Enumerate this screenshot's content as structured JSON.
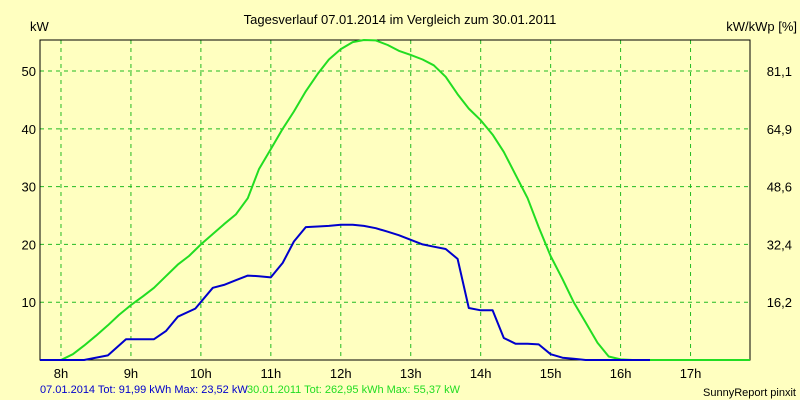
{
  "chart_data": {
    "type": "line",
    "title": "Tagesverlauf 07.01.2014 im Vergleich zum 30.01.2011",
    "ylabel_left": "kW",
    "ylabel_right": "kW/kWp [%]",
    "xlim": [
      7.7,
      17.85
    ],
    "ylim": [
      0,
      55.37
    ],
    "x_ticks": [
      8,
      9,
      10,
      11,
      12,
      13,
      14,
      15,
      16,
      17
    ],
    "x_tick_labels": [
      "8h",
      "9h",
      "10h",
      "11h",
      "12h",
      "13h",
      "14h",
      "15h",
      "16h",
      "17h"
    ],
    "y_ticks": [
      10,
      20,
      30,
      40,
      50
    ],
    "y_tick_labels": [
      "10",
      "20",
      "30",
      "40",
      "50"
    ],
    "y2_tick_labels": [
      "16,2",
      "32,4",
      "48,6",
      "64,9",
      "81,1"
    ],
    "grid": true,
    "series": [
      {
        "name": "07.01.2014",
        "color": "#0000cc",
        "x": [
          7.7,
          8.33,
          8.67,
          8.93,
          9.17,
          9.33,
          9.5,
          9.67,
          9.92,
          10.17,
          10.33,
          10.5,
          10.67,
          10.83,
          11.0,
          11.17,
          11.33,
          11.5,
          11.67,
          11.83,
          12.0,
          12.17,
          12.33,
          12.5,
          12.67,
          12.83,
          13.0,
          13.17,
          13.33,
          13.5,
          13.67,
          13.83,
          14.0,
          14.17,
          14.33,
          14.5,
          14.67,
          14.83,
          15.0,
          15.17,
          15.33,
          15.5,
          15.67,
          15.83,
          16.0,
          16.17,
          16.33,
          16.42
        ],
        "values": [
          0,
          0,
          0.8,
          3.6,
          3.6,
          3.6,
          5.0,
          7.5,
          8.9,
          12.5,
          13.0,
          13.8,
          14.6,
          14.5,
          14.3,
          16.8,
          20.5,
          23.0,
          23.1,
          23.2,
          23.4,
          23.4,
          23.2,
          22.8,
          22.2,
          21.6,
          20.8,
          20.0,
          19.6,
          19.2,
          17.5,
          9.0,
          8.6,
          8.6,
          3.8,
          2.8,
          2.8,
          2.7,
          1.0,
          0.4,
          0.2,
          0,
          0,
          0,
          0,
          0,
          0,
          0
        ]
      },
      {
        "name": "30.01.2011",
        "color": "#22dd22",
        "x": [
          7.7,
          8.0,
          8.17,
          8.33,
          8.5,
          8.67,
          8.83,
          9.0,
          9.17,
          9.33,
          9.5,
          9.67,
          9.83,
          10.0,
          10.17,
          10.33,
          10.5,
          10.67,
          10.83,
          11.0,
          11.17,
          11.33,
          11.5,
          11.67,
          11.83,
          12.0,
          12.17,
          12.33,
          12.5,
          12.67,
          12.83,
          13.0,
          13.17,
          13.33,
          13.5,
          13.67,
          13.83,
          14.0,
          14.17,
          14.33,
          14.5,
          14.67,
          14.83,
          15.0,
          15.17,
          15.33,
          15.5,
          15.67,
          15.83,
          16.0,
          16.17,
          16.33,
          16.5,
          16.67,
          16.83,
          17.0,
          17.17,
          17.33,
          17.85
        ],
        "values": [
          0,
          0,
          1.0,
          2.5,
          4.2,
          6.0,
          7.8,
          9.5,
          11.0,
          12.5,
          14.5,
          16.5,
          18.0,
          20.0,
          21.8,
          23.5,
          25.2,
          28.0,
          33.0,
          36.5,
          40.0,
          43.0,
          46.5,
          49.5,
          52.0,
          53.8,
          55.0,
          55.37,
          55.3,
          54.5,
          53.5,
          52.8,
          52.0,
          51.0,
          49.0,
          46.0,
          43.5,
          41.5,
          39.0,
          36.0,
          32.0,
          28.0,
          23.0,
          18.0,
          14.0,
          10.0,
          6.5,
          3.0,
          0.6,
          0.1,
          0,
          0,
          0,
          0,
          0,
          0,
          0,
          0,
          0
        ]
      }
    ]
  },
  "footer": {
    "series1_text": "07.01.2014 Tot: 91,99 kWh Max: 23,52 kW",
    "series2_text": "30.01.2011 Tot: 262,95 kWh Max: 55,37 kW",
    "credit": "SunnyReport pinxit"
  }
}
